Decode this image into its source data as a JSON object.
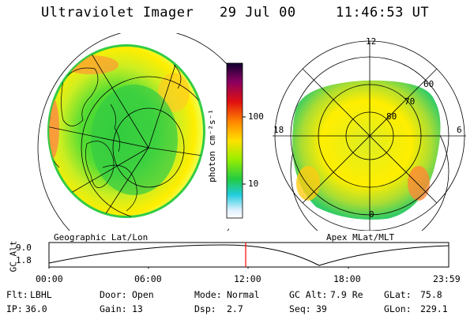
{
  "header": {
    "title": "Ultraviolet Imager",
    "date": "29 Jul 00",
    "time": "11:46:53 UT"
  },
  "left_panel": {
    "label": "Geographic Lat/Lon"
  },
  "right_panel": {
    "label": "Apex MLat/MLT",
    "mlt_labels": [
      "12",
      "18",
      "6",
      "0"
    ],
    "lat_labels": [
      "60",
      "70",
      "80"
    ]
  },
  "colorbar": {
    "unit_label": "photon cm⁻²s⁻¹",
    "ticks": [
      "100",
      "10"
    ]
  },
  "timeline": {
    "axis_label": "GC Alt",
    "y_ticks": [
      "9.0",
      "1.8"
    ],
    "x_ticks": [
      "00:00",
      "06:00",
      "12:00",
      "18:00",
      "23:59"
    ],
    "marker_color": "#ff0000"
  },
  "info": {
    "row1": [
      {
        "label": "Flt:",
        "value": "LBHL"
      },
      {
        "label": "Door:",
        "value": "Open"
      },
      {
        "label": "Mode:",
        "value": "Normal"
      },
      {
        "label": "GC Alt:",
        "value": "7.9 Re"
      },
      {
        "label": "GLat:",
        "value": "75.8"
      }
    ],
    "row2": [
      {
        "label": "IP:",
        "value": "36.0"
      },
      {
        "label": "Gain:",
        "value": "13"
      },
      {
        "label": "Dsp:",
        "value": "2.7"
      },
      {
        "label": "Seq:",
        "value": "39"
      },
      {
        "label": "GLon:",
        "value": "229.1"
      }
    ]
  }
}
